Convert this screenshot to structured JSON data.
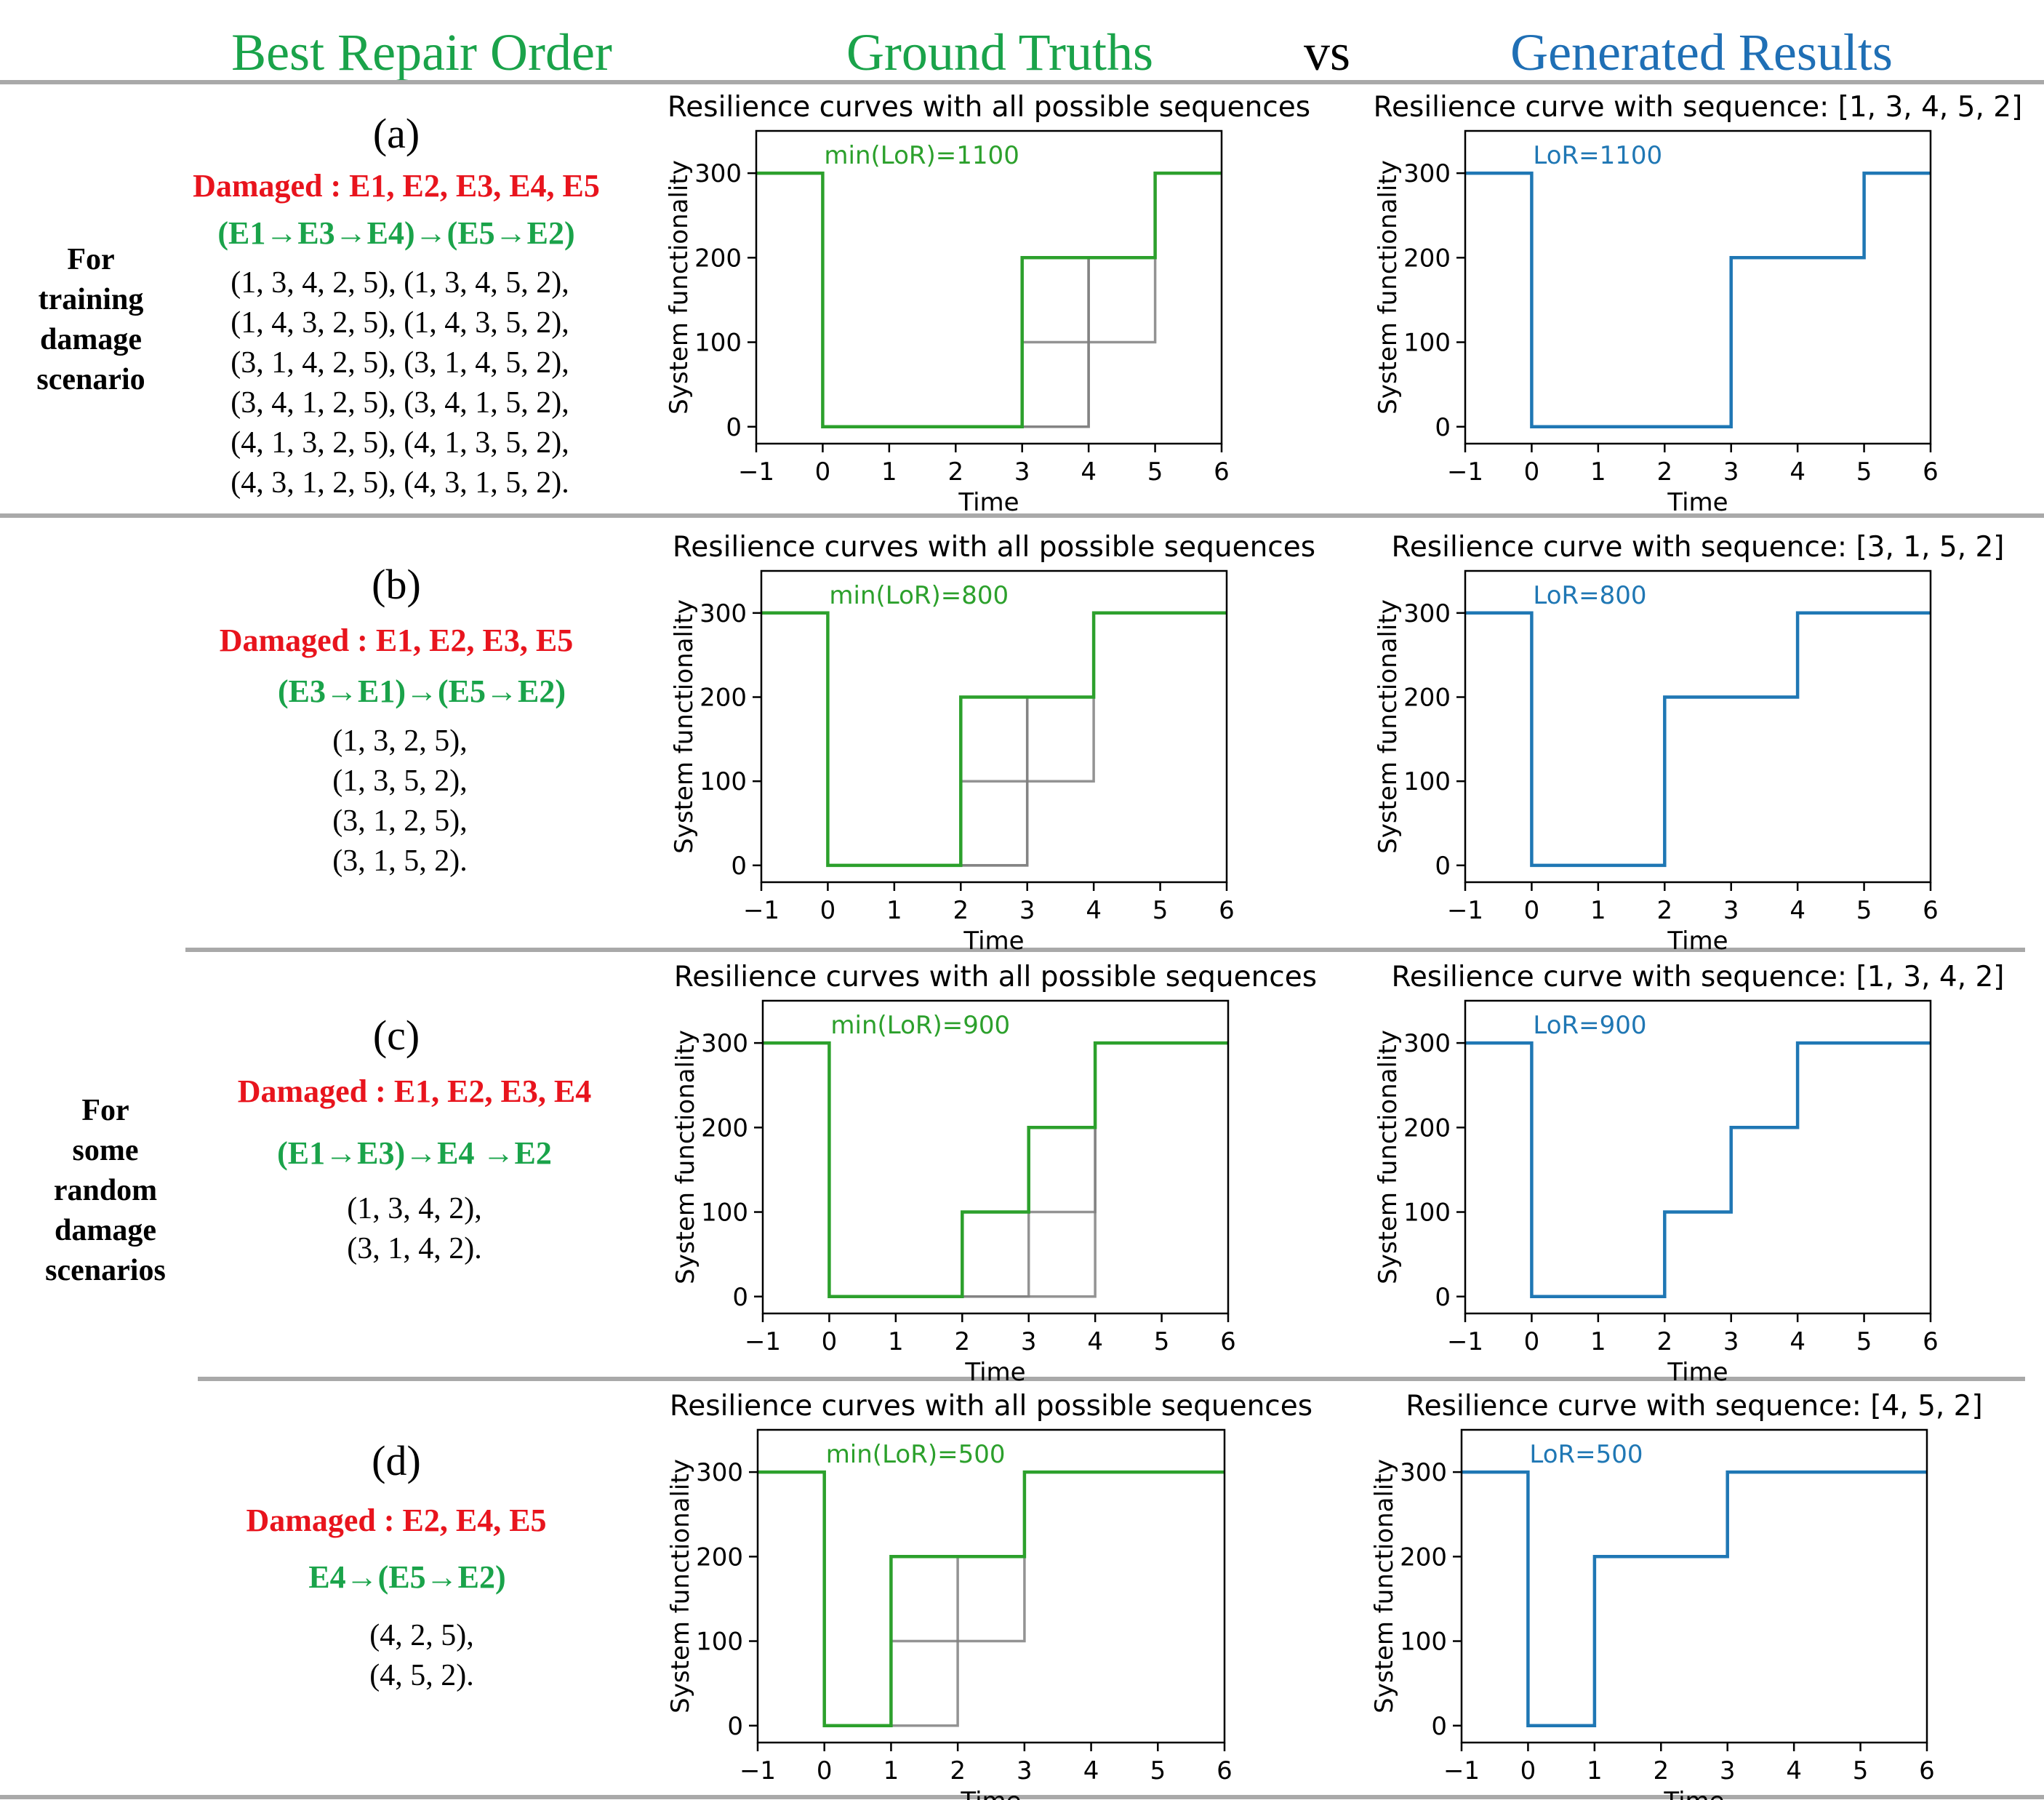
{
  "header": {
    "best_repair_order": "Best Repair Order",
    "ground_truths": "Ground Truths",
    "vs": "vs",
    "generated_results": "Generated Results"
  },
  "side_labels": {
    "training": [
      "For",
      "training",
      "damage",
      "scenario"
    ],
    "random": [
      "For",
      "some",
      "random",
      "damage",
      "scenarios"
    ]
  },
  "colors": {
    "green": "#2ca02c",
    "blue": "#1f77b4",
    "red": "#e8141d",
    "gray": "#808080"
  },
  "panels": [
    {
      "letter": "(a)",
      "damaged": "Damaged :  E1, E2, E3, E4, E5",
      "order": "(E1→E3→E4)→(E5→E2)",
      "sequences": [
        "(1, 3, 4, 2, 5),  (1, 3, 4, 5, 2),",
        "(1, 4, 3, 2, 5),  (1, 4, 3, 5, 2),",
        "(3, 1, 4, 2, 5),  (3, 1, 4, 5, 2),",
        "(3, 4, 1, 2, 5),  (3, 4, 1, 5, 2),",
        "(4, 1, 3, 2, 5),  (4, 1, 3, 5, 2),",
        "(4, 3, 1, 2, 5),  (4, 3, 1, 5, 2)."
      ]
    },
    {
      "letter": "(b)",
      "damaged": "Damaged :  E1, E2, E3, E5",
      "order": "(E3→E1)→(E5→E2)",
      "sequences": [
        "(1, 3, 2, 5),",
        "(1, 3, 5, 2),",
        "(3, 1, 2, 5),",
        "(3, 1, 5, 2)."
      ]
    },
    {
      "letter": "(c)",
      "damaged": "Damaged :  E1, E2, E3, E4",
      "order": "(E1→E3)→E4 →E2",
      "sequences": [
        "(1, 3, 4, 2),",
        "(3, 1, 4, 2)."
      ]
    },
    {
      "letter": "(d)",
      "damaged": "Damaged :  E2, E4, E5",
      "order": "E4→(E5→E2)",
      "sequences": [
        "(4, 2, 5),",
        "(4, 5, 2)."
      ]
    }
  ],
  "chart_data": [
    {
      "type": "line",
      "panel": "(a)",
      "role": "ground_truth",
      "title": "Resilience curves with all possible sequences",
      "xlabel": "Time",
      "ylabel": "System functionality",
      "xlim": [
        -1,
        6
      ],
      "ylim": [
        -20,
        350
      ],
      "xticks": [
        -1,
        0,
        1,
        2,
        3,
        4,
        5,
        6
      ],
      "yticks": [
        0,
        100,
        200,
        300
      ],
      "annotation": "min(LoR)=1100",
      "series": [
        {
          "color": "gray",
          "x": [
            -1,
            0,
            0,
            3,
            3,
            4,
            4,
            5,
            5,
            6
          ],
          "y": [
            300,
            300,
            0,
            0,
            100,
            100,
            200,
            200,
            300,
            300
          ]
        },
        {
          "color": "gray",
          "x": [
            -1,
            0,
            0,
            3,
            3,
            4,
            4,
            5,
            5,
            6
          ],
          "y": [
            300,
            300,
            0,
            0,
            0,
            0,
            100,
            100,
            300,
            300
          ]
        },
        {
          "color": "gray",
          "x": [
            -1,
            0,
            0,
            4,
            4,
            5,
            5,
            6
          ],
          "y": [
            300,
            300,
            0,
            0,
            200,
            200,
            300,
            300
          ]
        },
        {
          "color": "green",
          "x": [
            -1,
            0,
            0,
            3,
            3,
            5,
            5,
            6
          ],
          "y": [
            300,
            300,
            0,
            0,
            200,
            200,
            300,
            300
          ]
        }
      ]
    },
    {
      "type": "line",
      "panel": "(a)",
      "role": "generated",
      "title": "Resilience curve with sequence: [1, 3, 4, 5, 2]",
      "xlabel": "Time",
      "ylabel": "System functionality",
      "xlim": [
        -1,
        6
      ],
      "ylim": [
        -20,
        350
      ],
      "xticks": [
        -1,
        0,
        1,
        2,
        3,
        4,
        5,
        6
      ],
      "yticks": [
        0,
        100,
        200,
        300
      ],
      "annotation": "LoR=1100",
      "series": [
        {
          "color": "blue",
          "x": [
            -1,
            0,
            0,
            3,
            3,
            5,
            5,
            6
          ],
          "y": [
            300,
            300,
            0,
            0,
            200,
            200,
            300,
            300
          ]
        }
      ]
    },
    {
      "type": "line",
      "panel": "(b)",
      "role": "ground_truth",
      "title": "Resilience curves with all possible sequences",
      "xlabel": "Time",
      "ylabel": "System functionality",
      "xlim": [
        -1,
        6
      ],
      "ylim": [
        -20,
        350
      ],
      "xticks": [
        -1,
        0,
        1,
        2,
        3,
        4,
        5,
        6
      ],
      "yticks": [
        0,
        100,
        200,
        300
      ],
      "annotation": "min(LoR)=800",
      "series": [
        {
          "color": "gray",
          "x": [
            -1,
            0,
            0,
            2,
            2,
            3,
            3,
            4,
            4,
            6
          ],
          "y": [
            300,
            300,
            0,
            0,
            100,
            100,
            200,
            200,
            300,
            300
          ]
        },
        {
          "color": "gray",
          "x": [
            -1,
            0,
            0,
            2,
            2,
            3,
            3,
            4,
            4,
            6
          ],
          "y": [
            300,
            300,
            0,
            0,
            0,
            0,
            100,
            100,
            300,
            300
          ]
        },
        {
          "color": "gray",
          "x": [
            -1,
            0,
            0,
            3,
            3,
            4,
            4,
            6
          ],
          "y": [
            300,
            300,
            0,
            0,
            200,
            200,
            300,
            300
          ]
        },
        {
          "color": "green",
          "x": [
            -1,
            0,
            0,
            2,
            2,
            4,
            4,
            6
          ],
          "y": [
            300,
            300,
            0,
            0,
            200,
            200,
            300,
            300
          ]
        }
      ]
    },
    {
      "type": "line",
      "panel": "(b)",
      "role": "generated",
      "title": "Resilience curve with sequence: [3, 1, 5, 2]",
      "xlabel": "Time",
      "ylabel": "System functionality",
      "xlim": [
        -1,
        6
      ],
      "ylim": [
        -20,
        350
      ],
      "xticks": [
        -1,
        0,
        1,
        2,
        3,
        4,
        5,
        6
      ],
      "yticks": [
        0,
        100,
        200,
        300
      ],
      "annotation": "LoR=800",
      "series": [
        {
          "color": "blue",
          "x": [
            -1,
            0,
            0,
            2,
            2,
            4,
            4,
            6
          ],
          "y": [
            300,
            300,
            0,
            0,
            200,
            200,
            300,
            300
          ]
        }
      ]
    },
    {
      "type": "line",
      "panel": "(c)",
      "role": "ground_truth",
      "title": "Resilience curves with all possible sequences",
      "xlabel": "Time",
      "ylabel": "System functionality",
      "xlim": [
        -1,
        6
      ],
      "ylim": [
        -20,
        350
      ],
      "xticks": [
        -1,
        0,
        1,
        2,
        3,
        4,
        5,
        6
      ],
      "yticks": [
        0,
        100,
        200,
        300
      ],
      "annotation": "min(LoR)=900",
      "series": [
        {
          "color": "gray",
          "x": [
            -1,
            0,
            0,
            3,
            3,
            4,
            4,
            6
          ],
          "y": [
            300,
            300,
            0,
            0,
            100,
            100,
            300,
            300
          ]
        },
        {
          "color": "gray",
          "x": [
            -1,
            0,
            0,
            4,
            4,
            6
          ],
          "y": [
            300,
            300,
            0,
            0,
            300,
            300
          ]
        },
        {
          "color": "green",
          "x": [
            -1,
            0,
            0,
            2,
            2,
            3,
            3,
            4,
            4,
            6
          ],
          "y": [
            300,
            300,
            0,
            0,
            100,
            100,
            200,
            200,
            300,
            300
          ]
        }
      ]
    },
    {
      "type": "line",
      "panel": "(c)",
      "role": "generated",
      "title": "Resilience curve with sequence: [1, 3, 4, 2]",
      "xlabel": "Time",
      "ylabel": "System functionality",
      "xlim": [
        -1,
        6
      ],
      "ylim": [
        -20,
        350
      ],
      "xticks": [
        -1,
        0,
        1,
        2,
        3,
        4,
        5,
        6
      ],
      "yticks": [
        0,
        100,
        200,
        300
      ],
      "annotation": "LoR=900",
      "series": [
        {
          "color": "blue",
          "x": [
            -1,
            0,
            0,
            2,
            2,
            3,
            3,
            4,
            4,
            6
          ],
          "y": [
            300,
            300,
            0,
            0,
            100,
            100,
            200,
            200,
            300,
            300
          ]
        }
      ]
    },
    {
      "type": "line",
      "panel": "(d)",
      "role": "ground_truth",
      "title": "Resilience curves with all possible sequences",
      "xlabel": "Time",
      "ylabel": "System functionality",
      "xlim": [
        -1,
        6
      ],
      "ylim": [
        -20,
        350
      ],
      "xticks": [
        -1,
        0,
        1,
        2,
        3,
        4,
        5,
        6
      ],
      "yticks": [
        0,
        100,
        200,
        300
      ],
      "annotation": "min(LoR)=500",
      "series": [
        {
          "color": "gray",
          "x": [
            -1,
            0,
            0,
            1,
            1,
            3,
            3,
            6
          ],
          "y": [
            300,
            300,
            0,
            0,
            100,
            100,
            300,
            300
          ]
        },
        {
          "color": "gray",
          "x": [
            -1,
            0,
            0,
            2,
            2,
            3,
            3,
            6
          ],
          "y": [
            300,
            300,
            0,
            0,
            200,
            200,
            300,
            300
          ]
        },
        {
          "color": "green",
          "x": [
            -1,
            0,
            0,
            1,
            1,
            3,
            3,
            6
          ],
          "y": [
            300,
            300,
            0,
            0,
            200,
            200,
            300,
            300
          ]
        }
      ]
    },
    {
      "type": "line",
      "panel": "(d)",
      "role": "generated",
      "title": "Resilience curve with sequence: [4, 5, 2]",
      "xlabel": "Time",
      "ylabel": "System functionality",
      "xlim": [
        -1,
        6
      ],
      "ylim": [
        -20,
        350
      ],
      "xticks": [
        -1,
        0,
        1,
        2,
        3,
        4,
        5,
        6
      ],
      "yticks": [
        0,
        100,
        200,
        300
      ],
      "annotation": "LoR=500",
      "series": [
        {
          "color": "blue",
          "x": [
            -1,
            0,
            0,
            1,
            1,
            3,
            3,
            6
          ],
          "y": [
            300,
            300,
            0,
            0,
            200,
            200,
            300,
            300
          ]
        }
      ]
    }
  ]
}
